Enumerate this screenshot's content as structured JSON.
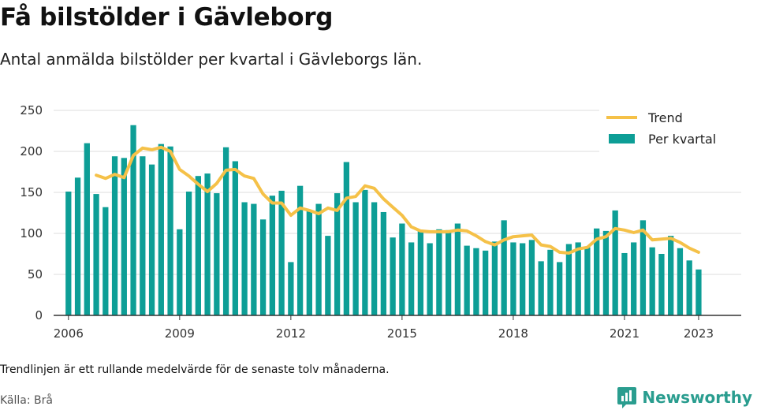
{
  "header": {
    "title": "Få bilstölder i Gävleborg",
    "subtitle": "Antal anmälda bilstölder per kvartal i Gävleborgs län."
  },
  "footer": {
    "note": "Trendlinjen är ett rullande medelvärde för de senaste tolv månaderna.",
    "source": "Källa: Brå",
    "brand": "Newsworthy"
  },
  "colors": {
    "bar": "#0d9e96",
    "trend": "#f5c148",
    "grid": "#dddddd",
    "axis": "#333333",
    "brand": "#2a9d8f"
  },
  "chart_data": {
    "type": "bar",
    "title": "",
    "xlabel": "",
    "ylabel": "",
    "ylim": [
      0,
      250
    ],
    "yticks": [
      0,
      50,
      100,
      150,
      200,
      250
    ],
    "xlim": [
      2005.6,
      2024.15
    ],
    "xticks": [
      "2006",
      "2009",
      "2012",
      "2015",
      "2018",
      "2021",
      "2023"
    ],
    "grid": true,
    "legend_position": "top-right",
    "x": [
      2006.0,
      2006.25,
      2006.5,
      2006.75,
      2007.0,
      2007.25,
      2007.5,
      2007.75,
      2008.0,
      2008.25,
      2008.5,
      2008.75,
      2009.0,
      2009.25,
      2009.5,
      2009.75,
      2010.0,
      2010.25,
      2010.5,
      2010.75,
      2011.0,
      2011.25,
      2011.5,
      2011.75,
      2012.0,
      2012.25,
      2012.5,
      2012.75,
      2013.0,
      2013.25,
      2013.5,
      2013.75,
      2014.0,
      2014.25,
      2014.5,
      2014.75,
      2015.0,
      2015.25,
      2015.5,
      2015.75,
      2016.0,
      2016.25,
      2016.5,
      2016.75,
      2017.0,
      2017.25,
      2017.5,
      2017.75,
      2018.0,
      2018.25,
      2018.5,
      2018.75,
      2019.0,
      2019.25,
      2019.5,
      2019.75,
      2020.0,
      2020.25,
      2020.5,
      2020.75,
      2021.0,
      2021.25,
      2021.5,
      2021.75,
      2022.0,
      2022.25,
      2022.5,
      2022.75,
      2023.0
    ],
    "series": [
      {
        "name": "Per kvartal",
        "values": [
          151,
          168,
          210,
          148,
          132,
          194,
          192,
          232,
          194,
          184,
          209,
          206,
          105,
          151,
          170,
          173,
          149,
          205,
          188,
          138,
          136,
          117,
          146,
          152,
          65,
          158,
          128,
          136,
          97,
          149,
          187,
          138,
          153,
          138,
          126,
          95,
          112,
          89,
          103,
          88,
          105,
          104,
          112,
          85,
          82,
          79,
          90,
          116,
          89,
          88,
          92,
          66,
          80,
          65,
          87,
          89,
          83,
          106,
          103,
          128,
          76,
          89,
          116,
          83,
          75,
          97,
          82,
          67,
          56
        ]
      },
      {
        "name": "Trend",
        "x": [
          2006.75,
          2007.0,
          2007.25,
          2007.5,
          2007.75,
          2008.0,
          2008.25,
          2008.5,
          2008.75,
          2009.0,
          2009.25,
          2009.5,
          2009.75,
          2010.0,
          2010.25,
          2010.5,
          2010.75,
          2011.0,
          2011.25,
          2011.5,
          2011.75,
          2012.0,
          2012.25,
          2012.5,
          2012.75,
          2013.0,
          2013.25,
          2013.5,
          2013.75,
          2014.0,
          2014.25,
          2014.5,
          2014.75,
          2015.0,
          2015.25,
          2015.5,
          2015.75,
          2016.0,
          2016.25,
          2016.5,
          2016.75,
          2017.0,
          2017.25,
          2017.5,
          2017.75,
          2018.0,
          2018.25,
          2018.5,
          2018.75,
          2019.0,
          2019.25,
          2019.5,
          2019.75,
          2020.0,
          2020.25,
          2020.5,
          2020.75,
          2021.0,
          2021.25,
          2021.5,
          2021.75,
          2022.0,
          2022.25,
          2022.5,
          2022.75,
          2023.0
        ],
        "values": [
          171,
          167,
          172,
          168,
          195,
          204,
          202,
          205,
          200,
          178,
          170,
          160,
          151,
          161,
          177,
          178,
          170,
          167,
          148,
          137,
          137,
          122,
          131,
          128,
          124,
          131,
          128,
          143,
          145,
          158,
          155,
          142,
          132,
          122,
          108,
          103,
          102,
          102,
          102,
          104,
          103,
          97,
          90,
          86,
          92,
          96,
          97,
          98,
          86,
          84,
          77,
          76,
          81,
          83,
          93,
          96,
          106,
          104,
          101,
          104,
          92,
          93,
          94,
          89,
          82,
          77
        ]
      }
    ]
  }
}
